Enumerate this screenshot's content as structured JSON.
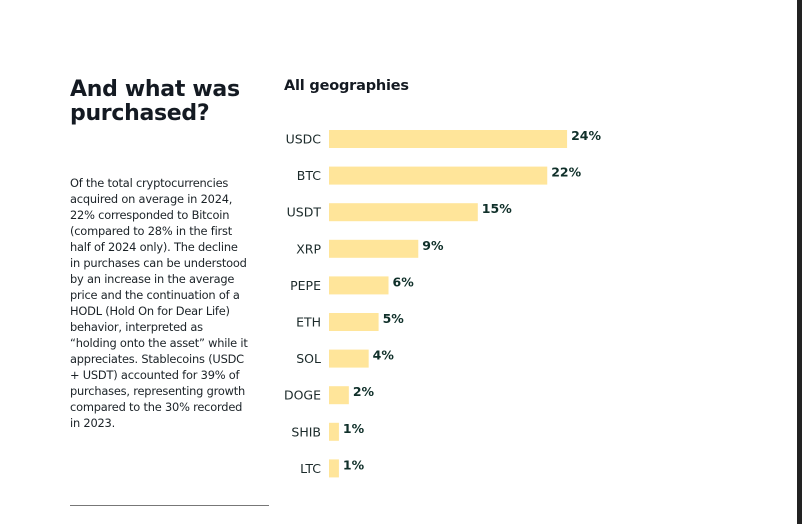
{
  "left_panel": {
    "title": "And what was purchased?",
    "body": "Of the total cryptocurrencies acquired on average in 2024, 22% corresponded to Bitcoin (compared to 28% in the first half of 2024 only). The decline in purchases can be understood by an increase in the average price and the continuation of a HODL (Hold On for Dear Life) behavior, interpreted as “holding onto the asset” while it appreciates. Stablecoins (USDC + USDT) accounted for 39% of purchases, representing growth compared to the 30% recorded in 2023."
  },
  "colors": {
    "bar": "#FFE59A",
    "text": "#141a22",
    "value_label": "#10302a"
  },
  "chart_data": {
    "type": "bar",
    "orientation": "horizontal",
    "title": "All geographies",
    "xlabel": "",
    "ylabel": "",
    "categories": [
      "USDC",
      "BTC",
      "USDT",
      "XRP",
      "PEPE",
      "ETH",
      "SOL",
      "DOGE",
      "SHIB",
      "LTC"
    ],
    "values": [
      24,
      22,
      15,
      9,
      6,
      5,
      4,
      2,
      1,
      1
    ],
    "value_labels": [
      "24%",
      "22%",
      "15%",
      "9%",
      "6%",
      "5%",
      "4%",
      "2%",
      "1%",
      "1%"
    ],
    "unit": "%",
    "xlim": [
      0,
      24
    ],
    "grid": false,
    "legend": "none"
  }
}
